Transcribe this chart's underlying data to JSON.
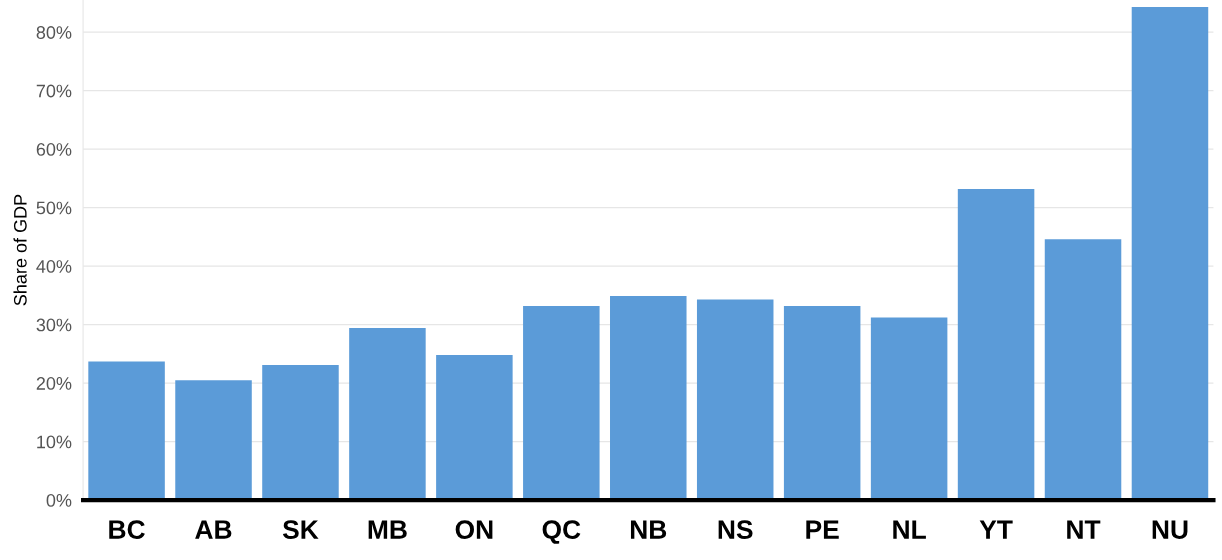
{
  "chart_data": {
    "type": "bar",
    "ylabel": "Share of GDP",
    "categories": [
      "BC",
      "AB",
      "SK",
      "MB",
      "ON",
      "QC",
      "NB",
      "NS",
      "PE",
      "NL",
      "YT",
      "NT",
      "NU"
    ],
    "values": [
      23.7,
      20.5,
      23.1,
      29.4,
      24.8,
      33.2,
      34.9,
      34.3,
      33.2,
      31.2,
      53.2,
      44.6,
      84.3
    ],
    "color": "#5b9bd8",
    "ylim": [
      0,
      85.5
    ],
    "yticks": [
      {
        "value": 0,
        "label": "0%"
      },
      {
        "value": 10,
        "label": "10%"
      },
      {
        "value": 20,
        "label": "20%"
      },
      {
        "value": 30,
        "label": "30%"
      },
      {
        "value": 40,
        "label": "40%"
      },
      {
        "value": 50,
        "label": "50%"
      },
      {
        "value": 60,
        "label": "60%"
      },
      {
        "value": 70,
        "label": "70%"
      },
      {
        "value": 80,
        "label": "80%"
      }
    ],
    "grid": "y"
  }
}
